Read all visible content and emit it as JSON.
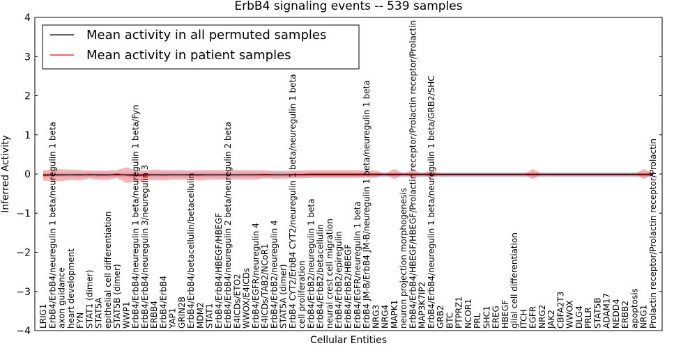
{
  "chart_data": {
    "type": "line",
    "title": "ErbB4 signaling events -- 539 samples",
    "xlabel": "Cellular Entities",
    "ylabel": "Inferred Activity",
    "ylim": [
      -4,
      4
    ],
    "yticks": [
      -4,
      -3,
      -2,
      -1,
      0,
      1,
      2,
      3,
      4
    ],
    "grid": false,
    "legend_placement": "top-left",
    "categories": [
      "LRIG1",
      "ErbB4/ErbB4/neuregulin 1 beta/neuregulin 1 beta",
      "axon guidance",
      "heart development",
      "FYN",
      "STAT1 (dimer)",
      "STAT5A",
      "epithelial cell differentiation",
      "STAT5B (dimer)",
      "WWP1",
      "ErbB4/ErbB4/neuregulin 1 beta/neuregulin 1 beta/Fyn",
      "ErbB4/ErbB4/neuregulin 3/neuregulin 3",
      "ERBB4",
      "ErbB4/ErbB4",
      "YAP1",
      "GRIN2B",
      "ErbB4/ErbB4/betacellulin/betacellulin",
      "MDM2",
      "STAT1",
      "ErbB4/ErbB4/HBEGF/HBEGF",
      "ErbB4/ErbB4/neuregulin 2 beta/neuregulin 2 beta",
      "E4ICDs/ETO2",
      "WWOX/E4ICDs",
      "ErbB4/EGFR/neuregulin 4",
      "E4ICDs/TAB2/NCoR1",
      "ErbB4/ErbB2/neuregulin 4",
      "STAT5A (dimer)",
      "ErbB4 CYT2/ErbB4 CYT2/neuregulin 1 beta/neuregulin 1 beta",
      "cell proliferation",
      "ErbB4/ErbB2/neuregulin 1 beta",
      "ErbB4/ErbB2/betacellulin",
      "neural crest cell migration",
      "ErbB4/ErbB2/epiregulin",
      "ErbB4/ErbB2/HBEGF",
      "ErbB4/EGFR/neuregulin 1 beta",
      "ErbB4 JM-B/ErbB4 JM-B/neuregulin 1 beta/neuregulin 1 beta",
      "NRG3",
      "NRG4",
      "MAPK1",
      "neuron projection morphogenesis",
      "ErbB4/ErbB4/HBEGF/HBEGF/Prolactin receptor/Prolactin receptor/Prolactin",
      "MAP3K7IP2",
      "ErbB4/ErbB4/neuregulin 1 beta/neuregulin 1 beta/GRB2/SHC",
      "GRB2",
      "BTC",
      "PTPRZ1",
      "NCOR1",
      "PRL",
      "SHC1",
      "EREG",
      "HBEGF",
      "glial cell differentiation",
      "ITCH",
      "EGFR",
      "NRG2",
      "JAK2",
      "CBFA2T3",
      "WWOX",
      "DLG4",
      "PRLR",
      "STAT5B",
      "ADAM17",
      "NEDD4",
      "ERBB2",
      "apoptosis",
      "NRG1",
      "Prolactin receptor/Prolactin receptor/Prolactin"
    ],
    "series": [
      {
        "name": "Mean activity in all permuted samples",
        "color": "#000000",
        "band_color": "#9aa6d6",
        "values": [
          -0.02,
          -0.02,
          -0.02,
          -0.02,
          -0.02,
          -0.02,
          -0.02,
          -0.02,
          -0.02,
          -0.02,
          -0.02,
          -0.02,
          -0.02,
          -0.02,
          -0.02,
          -0.02,
          -0.02,
          -0.02,
          -0.02,
          -0.02,
          -0.02,
          -0.02,
          -0.02,
          -0.02,
          -0.02,
          -0.02,
          -0.02,
          -0.02,
          -0.02,
          -0.02,
          -0.02,
          -0.02,
          -0.02,
          -0.02,
          -0.02,
          -0.02,
          -0.02,
          -0.02,
          -0.02,
          -0.02,
          -0.02,
          -0.02,
          -0.02,
          -0.02,
          -0.02,
          -0.02,
          -0.02,
          -0.02,
          -0.02,
          -0.02,
          -0.02,
          -0.02,
          -0.02,
          -0.02,
          -0.02,
          -0.02,
          -0.02,
          -0.02,
          -0.02,
          -0.02,
          -0.02,
          -0.02,
          -0.02,
          -0.02,
          -0.02,
          -0.02,
          -0.02
        ],
        "band": [
          0.06,
          0.06,
          0.06,
          0.06,
          0.06,
          0.06,
          0.06,
          0.06,
          0.06,
          0.06,
          0.06,
          0.06,
          0.06,
          0.06,
          0.06,
          0.06,
          0.06,
          0.06,
          0.06,
          0.06,
          0.06,
          0.06,
          0.06,
          0.06,
          0.06,
          0.06,
          0.06,
          0.06,
          0.06,
          0.06,
          0.06,
          0.06,
          0.06,
          0.06,
          0.06,
          0.06,
          0.06,
          0.06,
          0.06,
          0.06,
          0.06,
          0.06,
          0.06,
          0.06,
          0.06,
          0.06,
          0.06,
          0.06,
          0.06,
          0.06,
          0.06,
          0.06,
          0.06,
          0.06,
          0.06,
          0.06,
          0.06,
          0.06,
          0.06,
          0.06,
          0.06,
          0.06,
          0.06,
          0.06,
          0.06,
          0.06,
          0.06
        ]
      },
      {
        "name": "Mean activity in patient samples",
        "color": "#ff0000",
        "band_color": "#f08080",
        "values": [
          -0.04,
          -0.03,
          -0.03,
          -0.02,
          -0.03,
          -0.01,
          -0.03,
          -0.03,
          0.0,
          -0.03,
          -0.05,
          -0.04,
          -0.02,
          -0.03,
          -0.02,
          -0.02,
          -0.03,
          -0.03,
          -0.02,
          -0.02,
          -0.02,
          -0.02,
          -0.02,
          -0.02,
          -0.01,
          -0.02,
          -0.02,
          -0.01,
          -0.01,
          0.0,
          0.0,
          0.0,
          0.0,
          0.0,
          0.0,
          0.0,
          0.0,
          0.0,
          0.0,
          0.0,
          0.0,
          0.0,
          0.0,
          0.0,
          0.0,
          0.0,
          0.0,
          0.0,
          0.0,
          0.0,
          0.0,
          0.0,
          0.0,
          0.0,
          0.0,
          0.0,
          0.0,
          0.0,
          0.0,
          0.0,
          0.0,
          0.0,
          0.0,
          0.0,
          0.0,
          0.0,
          0.0
        ],
        "band": [
          0.13,
          0.15,
          0.15,
          0.13,
          0.13,
          0.1,
          0.12,
          0.12,
          0.1,
          0.2,
          0.14,
          0.13,
          0.13,
          0.13,
          0.12,
          0.12,
          0.12,
          0.13,
          0.12,
          0.12,
          0.12,
          0.12,
          0.12,
          0.12,
          0.1,
          0.1,
          0.1,
          0.1,
          0.1,
          0.1,
          0.1,
          0.1,
          0.1,
          0.1,
          0.1,
          0.09,
          0.09,
          0.01,
          0.13,
          0.01,
          0.1,
          0.01,
          0.1,
          0.0,
          0.0,
          0.0,
          0.0,
          0.0,
          0.0,
          0.0,
          0.0,
          0.0,
          0.0,
          0.13,
          0.0,
          0.0,
          0.0,
          0.0,
          0.0,
          0.0,
          0.0,
          0.0,
          0.0,
          0.02,
          0.0,
          0.13,
          0.0
        ]
      }
    ]
  }
}
